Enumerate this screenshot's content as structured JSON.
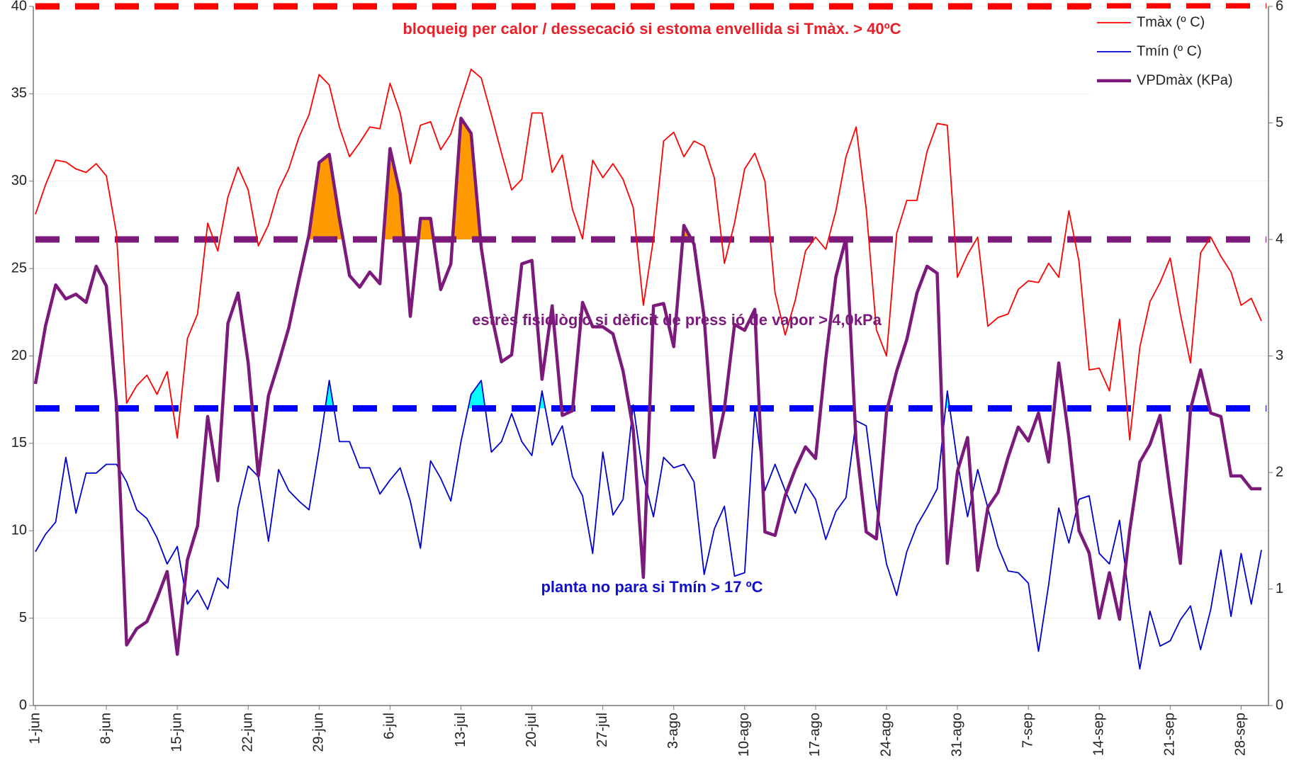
{
  "chart_data": {
    "type": "line",
    "categories": [
      "1-jun",
      null,
      null,
      null,
      null,
      null,
      null,
      "8-jun",
      null,
      null,
      null,
      null,
      null,
      null,
      "15-jun",
      null,
      null,
      null,
      null,
      null,
      null,
      "22-jun",
      null,
      null,
      null,
      null,
      null,
      null,
      "29-jun",
      null,
      null,
      null,
      null,
      null,
      null,
      "6-jul",
      null,
      null,
      null,
      null,
      null,
      null,
      "13-jul",
      null,
      null,
      null,
      null,
      null,
      null,
      "20-jul",
      null,
      null,
      null,
      null,
      null,
      null,
      "27-jul",
      null,
      null,
      null,
      null,
      null,
      null,
      "3-ago",
      null,
      null,
      null,
      null,
      null,
      null,
      "10-ago",
      null,
      null,
      null,
      null,
      null,
      null,
      "17-ago",
      null,
      null,
      null,
      null,
      null,
      null,
      "24-ago",
      null,
      null,
      null,
      null,
      null,
      null,
      "31-ago",
      null,
      null,
      null,
      null,
      null,
      null,
      "7-sep",
      null,
      null,
      null,
      null,
      null,
      null,
      "14-sep",
      null,
      null,
      null,
      null,
      null,
      null,
      "21-sep",
      null,
      null,
      null,
      null,
      null,
      null,
      "28-sep",
      null,
      null
    ],
    "series": [
      {
        "name": "Tmàx (º C)",
        "color": "#ff0000",
        "axis": "y",
        "values": [
          28.1,
          29.8,
          31.2,
          31.1,
          30.7,
          30.5,
          31.0,
          30.3,
          27.0,
          17.3,
          18.3,
          18.9,
          17.8,
          19.1,
          15.3,
          21.0,
          22.4,
          27.6,
          26.0,
          29.1,
          30.8,
          29.5,
          26.3,
          27.5,
          29.5,
          30.7,
          32.5,
          33.8,
          36.1,
          35.5,
          33.1,
          31.4,
          32.2,
          33.1,
          33.0,
          35.6,
          33.9,
          31.0,
          33.2,
          33.4,
          31.8,
          32.7,
          34.6,
          36.4,
          35.9,
          33.8,
          31.6,
          29.5,
          30.1,
          33.9,
          33.9,
          30.5,
          31.5,
          28.4,
          26.7,
          31.2,
          30.2,
          31.0,
          30.1,
          28.5,
          22.9,
          26.7,
          32.3,
          32.8,
          31.4,
          32.3,
          32.0,
          30.2,
          25.3,
          27.6,
          30.7,
          31.6,
          30.0,
          23.6,
          21.2,
          23.2,
          26.0,
          26.8,
          26.1,
          28.3,
          31.4,
          33.1,
          28.4,
          21.5,
          20.0,
          27.0,
          28.9,
          28.9,
          31.7,
          33.3,
          33.2,
          24.5,
          25.8,
          26.8,
          21.7,
          22.2,
          22.4,
          23.8,
          24.3,
          24.2,
          25.3,
          24.5,
          28.3,
          25.4,
          19.2,
          19.3,
          18.0,
          22.1,
          15.2,
          20.5,
          23.1,
          24.2,
          25.6,
          22.4,
          19.6,
          25.9,
          26.8,
          25.7,
          24.8,
          22.9,
          23.3,
          22.0
        ]
      },
      {
        "name": "Tmín (º C)",
        "color": "#0000cc",
        "axis": "y",
        "values": [
          8.8,
          9.8,
          10.5,
          14.2,
          11.0,
          13.3,
          13.3,
          13.8,
          13.8,
          12.8,
          11.2,
          10.7,
          9.6,
          8.1,
          9.1,
          5.8,
          6.6,
          5.5,
          7.3,
          6.7,
          11.3,
          13.7,
          13.1,
          9.4,
          13.5,
          12.3,
          11.7,
          11.2,
          14.7,
          18.6,
          15.1,
          15.1,
          13.6,
          13.6,
          12.1,
          12.9,
          13.6,
          11.7,
          9.0,
          14.0,
          13.0,
          11.7,
          15.1,
          17.8,
          18.6,
          14.5,
          15.1,
          16.7,
          15.1,
          14.3,
          18.0,
          14.9,
          16.0,
          13.1,
          12.0,
          8.7,
          14.5,
          10.9,
          11.8,
          17.2,
          13.1,
          10.8,
          14.2,
          13.6,
          13.8,
          12.8,
          7.5,
          10.1,
          11.4,
          7.4,
          7.6,
          17.0,
          12.3,
          13.8,
          12.3,
          11.0,
          12.7,
          11.8,
          9.5,
          11.1,
          11.9,
          16.3,
          16.0,
          11.4,
          8.1,
          6.3,
          8.8,
          10.3,
          11.3,
          12.4,
          18.0,
          13.9,
          10.8,
          13.5,
          11.3,
          9.1,
          7.7,
          7.6,
          7.0,
          3.1,
          6.9,
          11.3,
          9.3,
          11.8,
          12.0,
          8.7,
          8.1,
          10.6,
          5.8,
          2.1,
          5.4,
          3.4,
          3.7,
          4.9,
          5.7,
          3.2,
          5.5,
          8.9,
          5.1,
          8.7,
          5.8,
          8.9
        ]
      },
      {
        "name": "VPDmàx (KPa)",
        "color": "#7b1a7b",
        "axis": "y2",
        "values": [
          2.76,
          3.26,
          3.61,
          3.49,
          3.53,
          3.46,
          3.77,
          3.6,
          2.58,
          0.52,
          0.66,
          0.72,
          0.92,
          1.15,
          0.44,
          1.25,
          1.54,
          2.48,
          1.93,
          3.28,
          3.54,
          2.94,
          1.97,
          2.66,
          2.94,
          3.24,
          3.65,
          4.04,
          4.66,
          4.73,
          4.18,
          3.69,
          3.59,
          3.72,
          3.62,
          4.78,
          4.39,
          3.34,
          4.18,
          4.18,
          3.57,
          3.79,
          5.04,
          4.91,
          3.93,
          3.36,
          2.95,
          3.01,
          3.79,
          3.82,
          2.8,
          3.43,
          2.49,
          2.53,
          3.46,
          3.25,
          3.25,
          3.19,
          2.87,
          2.37,
          1.1,
          3.43,
          3.45,
          3.08,
          4.12,
          3.96,
          3.33,
          2.13,
          2.55,
          3.27,
          3.22,
          3.4,
          1.49,
          1.46,
          1.8,
          2.03,
          2.22,
          2.12,
          2.97,
          3.68,
          4.01,
          2.25,
          1.49,
          1.43,
          2.52,
          2.87,
          3.14,
          3.54,
          3.77,
          3.71,
          1.22,
          2.01,
          2.3,
          1.16,
          1.7,
          1.83,
          2.13,
          2.39,
          2.27,
          2.51,
          2.09,
          2.94,
          2.3,
          1.5,
          1.31,
          0.75,
          1.14,
          0.74,
          1.5,
          2.09,
          2.24,
          2.49,
          1.83,
          1.22,
          2.54,
          2.88,
          2.51,
          2.48,
          1.97,
          1.97,
          1.86,
          1.86
        ]
      }
    ],
    "reference_lines": [
      {
        "value": 40,
        "axis": "y",
        "color": "#ff0000"
      },
      {
        "value": 4,
        "axis": "y2",
        "color": "#7b1a7b",
        "fill_color": "#ff9900"
      },
      {
        "value": 17,
        "axis": "y",
        "color": "#0000ff",
        "fill_color": "#00ffff"
      }
    ],
    "annotations": [
      {
        "text": "bloqueig per calor / dessecació si estoma envellida si Tmàx. > 40ºC",
        "color": "#e8202a"
      },
      {
        "text": "estrès fisiològic   si dèficit de press ió de vapor > 4,0kPa",
        "color": "#7b1a7b"
      },
      {
        "text": "planta no para si Tmín > 17 ºC",
        "color": "#1010cc"
      }
    ],
    "ylim": [
      0,
      40
    ],
    "yticks": [
      0,
      5,
      10,
      15,
      20,
      25,
      30,
      35,
      40
    ],
    "y2lim": [
      0,
      6
    ],
    "y2ticks": [
      0,
      1,
      2,
      3,
      4,
      5,
      6
    ],
    "grid": true,
    "legend": "top-right"
  }
}
